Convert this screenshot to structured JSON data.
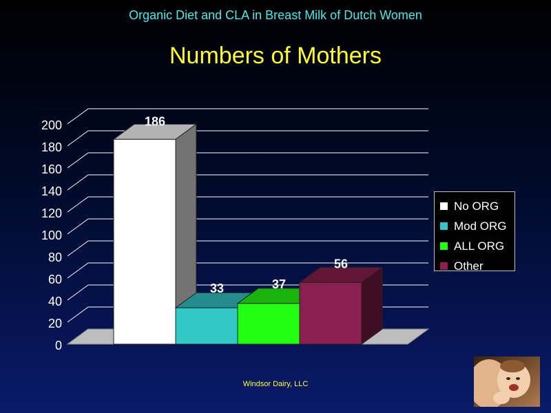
{
  "header": {
    "subtitle": "Organic Diet and CLA in Breast Milk of Dutch Women",
    "title": "Numbers of Mothers"
  },
  "footer": {
    "text": "Windsor Dairy, LLC"
  },
  "chart_data": {
    "type": "bar",
    "title": "Numbers of Mothers",
    "categories": [
      "No ORG",
      "Mod ORG",
      "ALL ORG",
      "Other"
    ],
    "values": [
      186,
      33,
      37,
      56
    ],
    "colors": [
      "#ffffff",
      "#33c8c8",
      "#22ff11",
      "#8b1f4f"
    ],
    "data_labels": [
      "186",
      "33",
      "37",
      "56"
    ],
    "yticks": [
      "0",
      "20",
      "40",
      "60",
      "80",
      "100",
      "120",
      "140",
      "160",
      "180",
      "200"
    ],
    "ylim": [
      0,
      200
    ],
    "grid": true,
    "legend": {
      "position": "right",
      "items": [
        "No ORG",
        "Mod ORG",
        "ALL ORG",
        "Other"
      ]
    }
  },
  "photo": {
    "icon": "baby-photo"
  }
}
